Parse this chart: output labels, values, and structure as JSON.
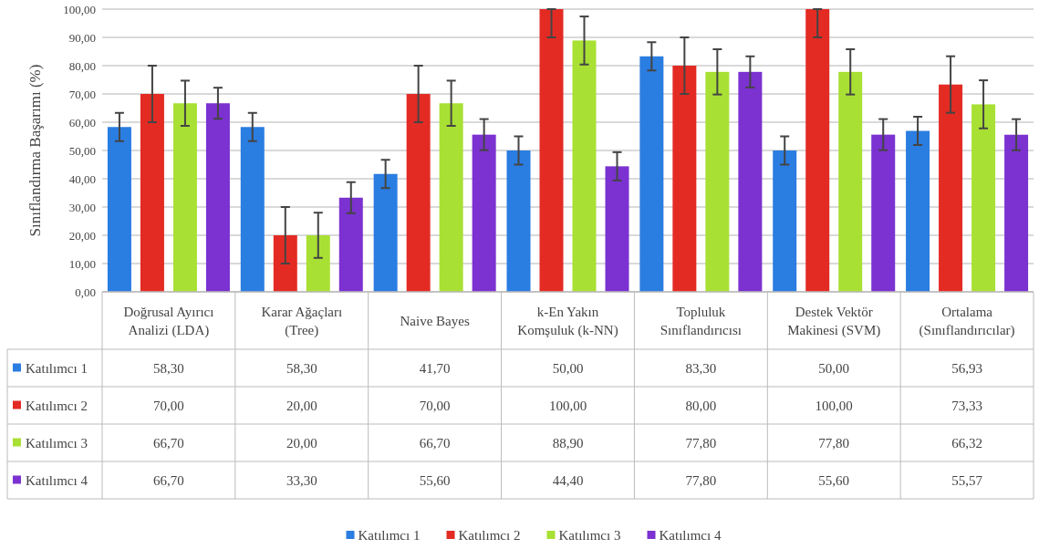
{
  "chart_data": {
    "type": "bar",
    "ylabel": "Sınıflandırma  Başarımı  (%)",
    "categories": [
      "Doğrusal Ayırıcı Analizi (LDA)",
      "Karar Ağaçları (Tree)",
      "Naive Bayes",
      "k-En Yakın Komşuluk (k-NN)",
      "Topluluk Sınıflandırıcısı",
      "Destek Vektör Makinesi (SVM)",
      "Ortalama (Sınıflandırıcılar)"
    ],
    "series": [
      {
        "name": "Katılımcı 1",
        "color": "#2a7de1",
        "values": [
          58.3,
          58.3,
          41.7,
          50,
          83.3,
          50,
          56.93
        ],
        "errors": [
          5,
          5,
          5,
          5,
          5,
          5,
          5
        ],
        "value_labels": [
          "58,30",
          "58,30",
          "41,70",
          "50,00",
          "83,30",
          "50,00",
          "56,93"
        ]
      },
      {
        "name": "Katılımcı 2",
        "color": "#e32b24",
        "values": [
          70,
          20,
          70,
          100,
          80,
          100,
          73.33
        ],
        "errors": [
          10,
          10,
          10,
          [
            90,
            100
          ],
          10,
          [
            90,
            100
          ],
          10
        ],
        "value_labels": [
          "70,00",
          "20,00",
          "70,00",
          "100,00",
          "80,00",
          "100,00",
          "73,33"
        ]
      },
      {
        "name": "Katılımcı 3",
        "color": "#a9e034",
        "values": [
          66.7,
          20,
          66.7,
          88.9,
          77.8,
          77.8,
          66.32
        ],
        "errors": [
          8,
          8,
          8,
          8.5,
          8,
          8,
          8.5
        ],
        "value_labels": [
          "66,70",
          "20,00",
          "66,70",
          "88,90",
          "77,80",
          "77,80",
          "66,32"
        ]
      },
      {
        "name": "Katılımcı 4",
        "color": "#7b32d0",
        "values": [
          66.7,
          33.3,
          55.6,
          44.4,
          77.8,
          55.6,
          55.57
        ],
        "errors": [
          5.5,
          5.5,
          5.5,
          5,
          5.5,
          5.5,
          5.5
        ],
        "value_labels": [
          "66,70",
          "33,30",
          "55,60",
          "44,40",
          "77,80",
          "55,60",
          "55,57"
        ]
      }
    ],
    "ylim": [
      0,
      100
    ],
    "yticks": [
      {
        "value": 0,
        "label": "0,00"
      },
      {
        "value": 10,
        "label": "10,00"
      },
      {
        "value": 20,
        "label": "20,00"
      },
      {
        "value": 30,
        "label": "30,00"
      },
      {
        "value": 40,
        "label": "40,00"
      },
      {
        "value": 50,
        "label": "50,00"
      },
      {
        "value": 60,
        "label": "60,00"
      },
      {
        "value": 70,
        "label": "70,00"
      },
      {
        "value": 80,
        "label": "80,00"
      },
      {
        "value": 90,
        "label": "90,00"
      },
      {
        "value": 100,
        "label": "100,00"
      }
    ],
    "grid": "y",
    "legend": "bottom"
  }
}
